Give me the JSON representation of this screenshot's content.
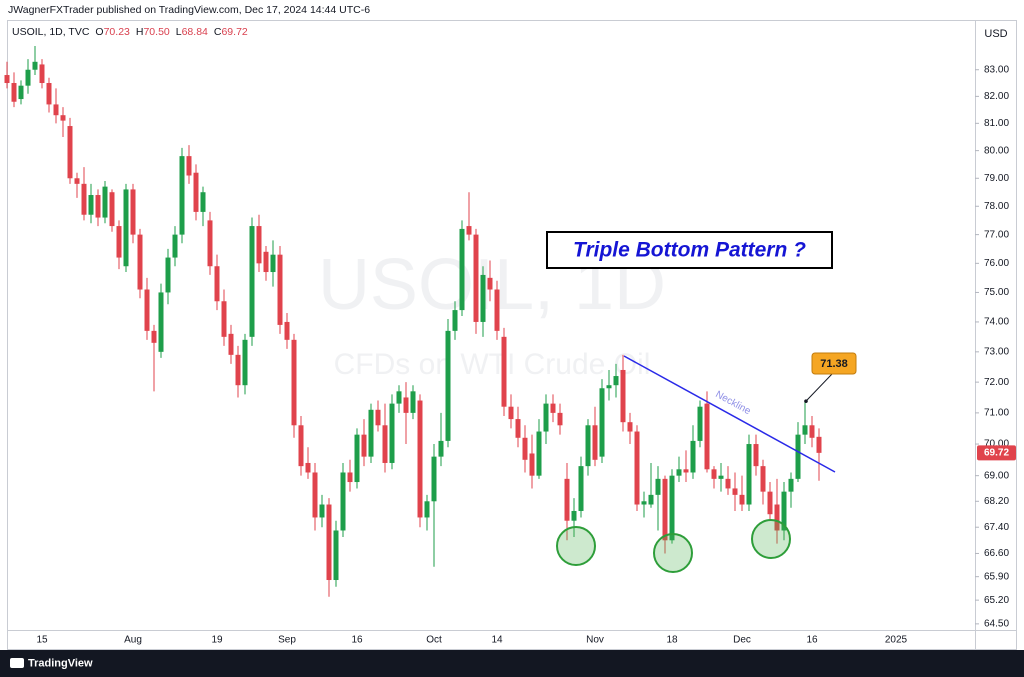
{
  "header": {
    "publisher": "JWagnerFXTrader published on TradingView.com, Dec 17, 2024 14:44 UTC-6",
    "brand": "TradingView",
    "currency": "USD"
  },
  "chart_data": {
    "type": "candlestick",
    "title": "USOIL, 1D, TVC",
    "ohlc": [
      {
        "key": "O",
        "value": "70.23"
      },
      {
        "key": "H",
        "value": "70.50"
      },
      {
        "key": "L",
        "value": "68.84"
      },
      {
        "key": "C",
        "value": "69.72"
      }
    ],
    "watermark": {
      "symbol": "USOIL, 1D",
      "description": "CFDs on WTI Crude Oil"
    },
    "annotations": {
      "pattern": "Triple Bottom Pattern ?",
      "neckline": "Neckline",
      "callout": 71.38
    },
    "log_scale": true,
    "grid": false,
    "up_color": "#1e9e4a",
    "down_color": "#e0434c",
    "ylim": [
      64.32,
      84.9
    ],
    "yticks": [
      {
        "value": 83,
        "label": "83.00"
      },
      {
        "value": 82,
        "label": "82.00"
      },
      {
        "value": 81,
        "label": "81.00"
      },
      {
        "value": 80,
        "label": "80.00"
      },
      {
        "value": 79,
        "label": "79.00"
      },
      {
        "value": 78,
        "label": "78.00"
      },
      {
        "value": 77,
        "label": "77.00"
      },
      {
        "value": 76,
        "label": "76.00"
      },
      {
        "value": 75,
        "label": "75.00"
      },
      {
        "value": 74,
        "label": "74.00"
      },
      {
        "value": 73,
        "label": "73.00"
      },
      {
        "value": 72,
        "label": "72.00"
      },
      {
        "value": 71,
        "label": "71.00"
      },
      {
        "value": 70,
        "label": "70.00"
      },
      {
        "value": 69,
        "label": "69.00"
      },
      {
        "value": 68.2,
        "label": "68.20"
      },
      {
        "value": 67.4,
        "label": "67.40"
      },
      {
        "value": 66.6,
        "label": "66.60"
      },
      {
        "value": 65.9,
        "label": "65.90"
      },
      {
        "value": 65.2,
        "label": "65.20"
      },
      {
        "value": 64.5,
        "label": "64.50"
      }
    ],
    "categories": [
      null,
      null,
      null,
      null,
      null,
      "15",
      null,
      null,
      null,
      null,
      null,
      null,
      null,
      null,
      null,
      null,
      null,
      null,
      "Aug",
      null,
      null,
      null,
      null,
      null,
      null,
      null,
      null,
      null,
      null,
      null,
      "19",
      null,
      null,
      null,
      null,
      null,
      null,
      null,
      null,
      null,
      "Sep",
      null,
      null,
      null,
      null,
      null,
      null,
      null,
      null,
      null,
      "16",
      null,
      null,
      null,
      null,
      null,
      null,
      null,
      null,
      null,
      null,
      "Oct",
      null,
      null,
      null,
      null,
      null,
      null,
      null,
      null,
      "14",
      null,
      null,
      null,
      null,
      null,
      null,
      null,
      null,
      null,
      null,
      null,
      null,
      null,
      "Nov",
      null,
      null,
      null,
      null,
      null,
      null,
      null,
      null,
      null,
      null,
      "18",
      null,
      null,
      null,
      null,
      null,
      null,
      null,
      null,
      null,
      "Dec",
      null,
      null,
      null,
      null,
      null,
      null,
      null,
      null,
      null,
      "16",
      null,
      null,
      null,
      null,
      null,
      null,
      null,
      null,
      null,
      null,
      null,
      "2025"
    ],
    "open": [
      82.8,
      82.5,
      81.9,
      82.4,
      83.0,
      83.2,
      82.5,
      81.7,
      81.3,
      80.9,
      79.0,
      78.8,
      77.7,
      78.4,
      77.6,
      78.5,
      77.3,
      75.9,
      78.6,
      77.0,
      75.1,
      73.7,
      73.0,
      75.0,
      76.2,
      77.0,
      79.8,
      79.2,
      77.8,
      77.5,
      75.9,
      74.7,
      73.6,
      72.9,
      71.9,
      73.5,
      77.3,
      76.4,
      75.7,
      76.3,
      74.0,
      73.4,
      70.6,
      69.4,
      69.1,
      67.7,
      68.1,
      65.8,
      67.3,
      69.1,
      68.8,
      70.3,
      69.6,
      71.1,
      70.6,
      69.4,
      71.3,
      71.5,
      71.0,
      71.4,
      67.7,
      68.2,
      69.6,
      70.1,
      73.7,
      74.4,
      77.3,
      77.0,
      74.0,
      75.5,
      75.1,
      73.5,
      71.2,
      70.8,
      70.2,
      69.7,
      69.0,
      70.4,
      71.3,
      71.0,
      68.9,
      67.6,
      67.9,
      69.3,
      70.6,
      69.6,
      71.8,
      71.9,
      72.4,
      70.7,
      70.4,
      68.1,
      68.1,
      68.4,
      68.9,
      67.0,
      69.0,
      69.2,
      69.1,
      70.1,
      71.3,
      69.2,
      68.9,
      68.9,
      68.6,
      68.4,
      68.1,
      70.0,
      69.3,
      68.5,
      68.1,
      67.3,
      68.5,
      68.9,
      70.3,
      70.6,
      70.23,
      null,
      null,
      null,
      null,
      null,
      null,
      null,
      null,
      null,
      null,
      null
    ],
    "high": [
      83.3,
      82.9,
      82.6,
      83.4,
      83.9,
      83.4,
      82.7,
      82.3,
      81.6,
      81.2,
      79.2,
      79.4,
      78.8,
      78.6,
      78.9,
      78.6,
      77.5,
      78.8,
      78.8,
      77.2,
      75.5,
      73.9,
      75.3,
      76.5,
      77.3,
      80.1,
      80.2,
      79.5,
      78.7,
      77.8,
      76.3,
      75.1,
      73.9,
      73.2,
      73.6,
      77.6,
      77.7,
      76.6,
      76.8,
      76.6,
      74.3,
      73.6,
      70.9,
      69.9,
      69.4,
      68.4,
      68.3,
      67.6,
      69.4,
      69.5,
      70.5,
      70.8,
      71.3,
      71.4,
      71.3,
      71.6,
      71.9,
      72.0,
      71.9,
      71.6,
      68.4,
      70.0,
      71.0,
      74.1,
      74.7,
      77.5,
      78.5,
      77.2,
      75.9,
      76.1,
      75.4,
      73.8,
      71.6,
      71.2,
      70.6,
      70.3,
      70.8,
      71.6,
      71.6,
      71.3,
      69.4,
      68.3,
      69.6,
      70.8,
      71.2,
      72.1,
      72.4,
      72.6,
      72.9,
      71.0,
      70.6,
      68.5,
      69.4,
      69.3,
      69.0,
      69.2,
      69.6,
      69.8,
      70.6,
      71.4,
      71.7,
      69.3,
      69.4,
      69.3,
      69.1,
      69.0,
      70.3,
      70.3,
      69.5,
      68.8,
      68.9,
      68.8,
      69.1,
      70.7,
      71.38,
      70.9,
      70.5,
      null,
      null,
      null,
      null,
      null,
      null,
      null,
      null,
      null,
      null,
      null
    ],
    "low": [
      82.3,
      81.6,
      81.7,
      82.1,
      82.8,
      82.3,
      81.4,
      81.0,
      80.5,
      78.8,
      78.3,
      77.5,
      77.4,
      77.3,
      77.4,
      77.1,
      75.8,
      75.7,
      76.7,
      74.8,
      73.4,
      71.7,
      72.8,
      74.6,
      75.9,
      76.7,
      78.8,
      77.5,
      77.3,
      75.6,
      74.4,
      73.2,
      72.6,
      71.5,
      71.6,
      73.2,
      75.7,
      75.4,
      75.2,
      73.6,
      73.1,
      70.2,
      69.0,
      68.9,
      67.3,
      67.4,
      65.3,
      65.6,
      67.1,
      68.5,
      68.6,
      69.3,
      69.4,
      70.4,
      69.1,
      69.2,
      71.0,
      70.0,
      70.8,
      67.4,
      67.3,
      66.2,
      69.3,
      69.9,
      73.4,
      74.2,
      76.8,
      73.6,
      73.5,
      74.7,
      73.4,
      70.9,
      70.5,
      69.9,
      69.1,
      68.6,
      68.9,
      70.0,
      70.7,
      70.3,
      67.0,
      67.1,
      67.7,
      69.0,
      69.3,
      69.4,
      71.4,
      71.5,
      70.4,
      70.0,
      67.9,
      67.7,
      68.0,
      67.3,
      66.6,
      66.9,
      68.8,
      68.8,
      68.9,
      69.9,
      69.1,
      68.6,
      68.5,
      68.4,
      67.9,
      67.9,
      67.9,
      69.0,
      68.1,
      67.6,
      66.9,
      67.0,
      68.0,
      68.8,
      70.0,
      69.9,
      68.84,
      null,
      null,
      null,
      null,
      null,
      null,
      null,
      null,
      null,
      null,
      null
    ],
    "close": [
      82.5,
      81.8,
      82.4,
      83.0,
      83.3,
      82.5,
      81.7,
      81.3,
      81.1,
      79.0,
      78.8,
      77.7,
      78.4,
      77.6,
      78.7,
      77.3,
      76.2,
      78.6,
      77.0,
      75.1,
      73.7,
      73.3,
      75.0,
      76.2,
      77.0,
      79.8,
      79.1,
      77.8,
      78.5,
      75.9,
      74.7,
      73.5,
      72.9,
      71.9,
      73.4,
      77.3,
      76.0,
      75.7,
      76.3,
      73.9,
      73.4,
      70.6,
      69.3,
      69.1,
      67.7,
      68.1,
      65.8,
      67.3,
      69.1,
      68.8,
      70.3,
      69.6,
      71.1,
      70.6,
      69.4,
      71.3,
      71.7,
      71.0,
      71.7,
      67.7,
      68.2,
      69.6,
      70.1,
      73.7,
      74.4,
      77.2,
      77.0,
      74.0,
      75.6,
      75.1,
      73.7,
      71.2,
      70.8,
      70.2,
      69.5,
      69.0,
      70.4,
      71.3,
      71.0,
      70.6,
      67.6,
      67.9,
      69.3,
      70.6,
      69.5,
      71.8,
      71.9,
      72.2,
      70.7,
      70.4,
      68.1,
      68.2,
      68.4,
      68.9,
      67.0,
      69.0,
      69.2,
      69.1,
      70.1,
      71.2,
      69.2,
      68.9,
      69.0,
      68.6,
      68.4,
      68.1,
      70.0,
      69.3,
      68.5,
      67.8,
      67.3,
      68.5,
      68.9,
      70.3,
      70.6,
      70.2,
      69.72,
      null,
      null,
      null,
      null,
      null,
      null,
      null,
      null,
      null,
      null,
      null
    ]
  }
}
